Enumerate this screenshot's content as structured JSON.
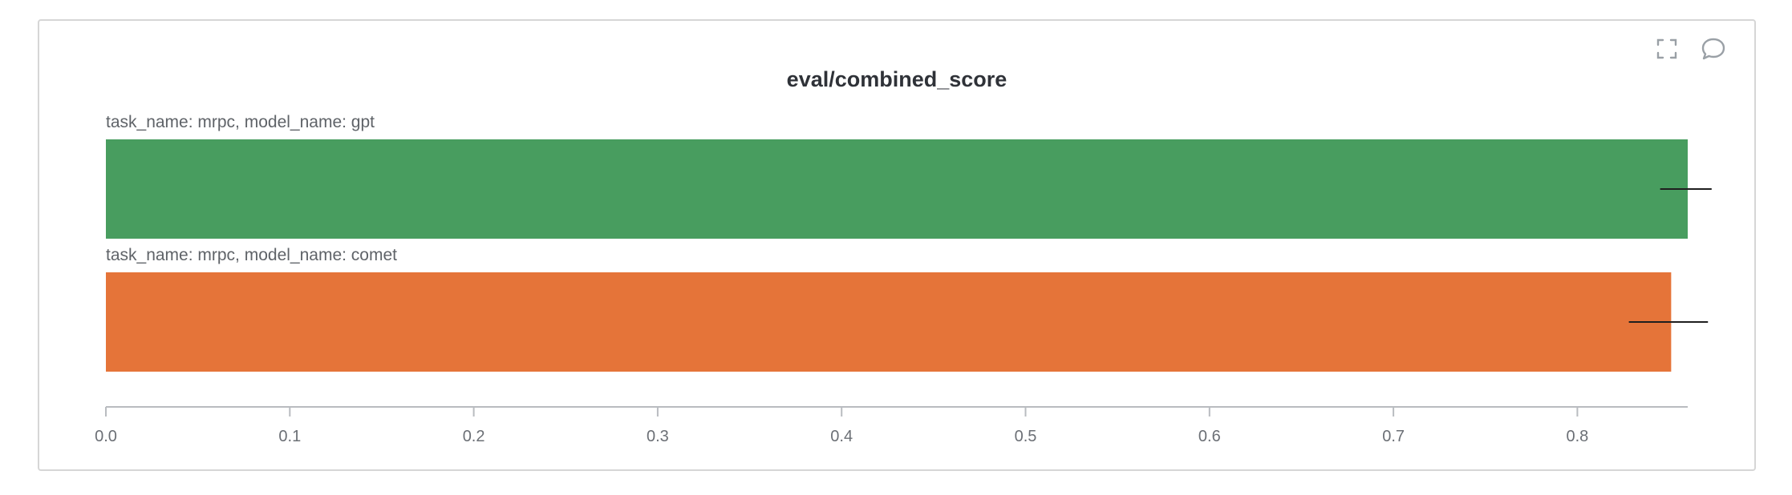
{
  "panel": {
    "title": "eval/combined_score",
    "actions": [
      {
        "name": "fullscreen-icon",
        "glyph": "fullscreen"
      },
      {
        "name": "comment-icon",
        "glyph": "speech-bubble"
      }
    ]
  },
  "chart_data": {
    "type": "bar",
    "orientation": "horizontal",
    "title": "eval/combined_score",
    "xlabel": "",
    "ylabel": "",
    "xlim": [
      0,
      0.86
    ],
    "grid": false,
    "x_ticks": [
      "0.0",
      "0.1",
      "0.2",
      "0.3",
      "0.4",
      "0.5",
      "0.6",
      "0.7",
      "0.8"
    ],
    "categories": [
      "task_name: mrpc, model_name: gpt",
      "task_name: mrpc, model_name: comet"
    ],
    "values": [
      0.86,
      0.851
    ],
    "error_ranges": [
      [
        0.845,
        0.873
      ],
      [
        0.828,
        0.871
      ]
    ],
    "colors": [
      "#489d5f",
      "#e57439"
    ]
  }
}
